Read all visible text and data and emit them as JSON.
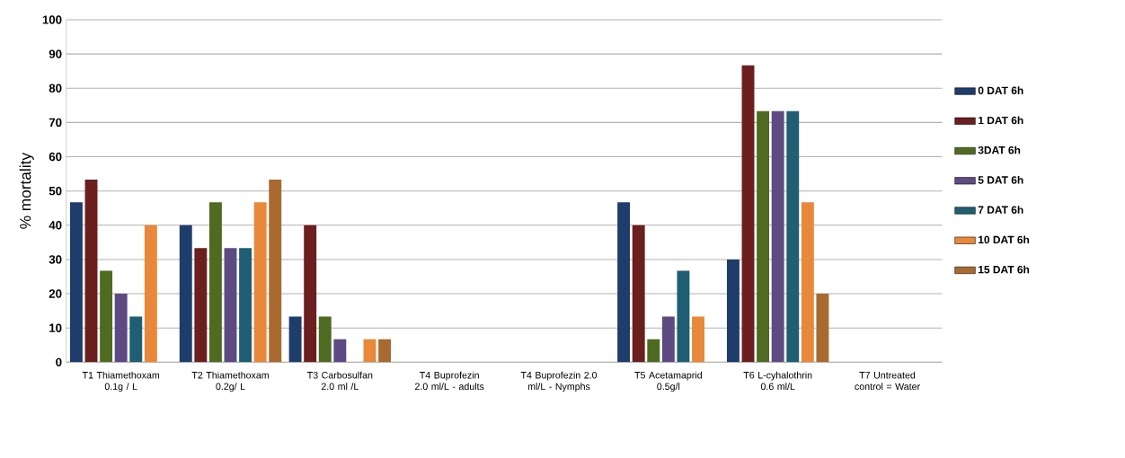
{
  "chart_data": {
    "type": "bar",
    "ylabel": "% mortality",
    "categories": [
      "T1 Thiamethoxam 0.1g / L",
      "T2 Thiamethoxam 0.2g/ L",
      "T3 Carbosulfan 2.0 ml /L",
      "T4 Buprofezin 2.0 ml/L - adults",
      "T4 Buprofezin 2.0 ml/L - Nymphs",
      "T5 Acetamaprid 0.5g/l",
      "T6 L-cyhalothrin 0.6 ml/L",
      "T7 Untreated control = Water"
    ],
    "series": [
      {
        "name": "0 DAT 6h",
        "color": "#1f3d6b",
        "values": [
          46.7,
          40,
          13.3,
          0,
          0,
          46.7,
          30,
          0
        ]
      },
      {
        "name": "1 DAT 6h",
        "color": "#6b1f1f",
        "values": [
          53.3,
          33.3,
          40,
          0,
          0,
          40,
          86.7,
          0
        ]
      },
      {
        "name": "3DAT 6h",
        "color": "#4f6b22",
        "values": [
          26.7,
          46.7,
          13.3,
          0,
          0,
          6.7,
          73.3,
          0
        ]
      },
      {
        "name": "5 DAT 6h",
        "color": "#5e4a82",
        "values": [
          20,
          33.3,
          6.7,
          0,
          0,
          13.3,
          73.3,
          0
        ]
      },
      {
        "name": "7 DAT 6h",
        "color": "#1f5e73",
        "values": [
          13.3,
          33.3,
          0,
          0,
          0,
          26.7,
          73.3,
          0
        ]
      },
      {
        "name": "10 DAT 6h",
        "color": "#e8883a",
        "values": [
          40,
          46.7,
          6.7,
          0,
          0,
          13.3,
          46.7,
          0
        ]
      },
      {
        "name": "15 DAT 6h",
        "color": "#a86a2e",
        "values": [
          0,
          53.3,
          6.7,
          0,
          0,
          0,
          20,
          0
        ]
      }
    ],
    "ylim": [
      0,
      100
    ],
    "yticks": [
      0,
      10,
      20,
      30,
      40,
      50,
      60,
      70,
      80,
      90,
      100
    ],
    "grid": "y",
    "legend": "right"
  }
}
